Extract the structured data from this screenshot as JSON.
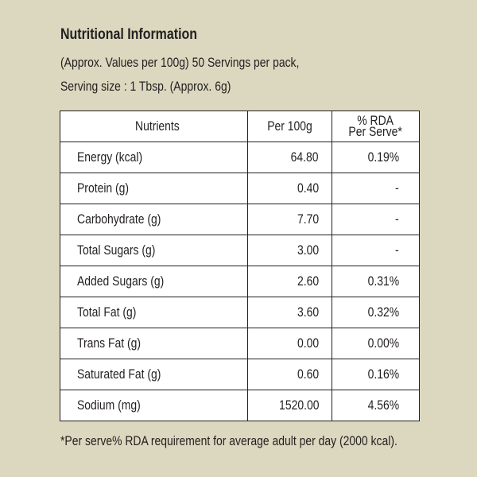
{
  "title": "Nutritional Information",
  "subtitle_line1": "(Approx. Values per 100g) 50 Servings per pack,",
  "subtitle_line2": "Serving size : 1  Tbsp. (Approx. 6g)",
  "table": {
    "headers": {
      "nutrients": "Nutrients",
      "per100g": "Per 100g",
      "rda_line1": "% RDA",
      "rda_line2": "Per Serve*"
    },
    "rows": [
      {
        "nutrient": "Energy (kcal)",
        "per100g": "64.80",
        "rda": "0.19%"
      },
      {
        "nutrient": "Protein (g)",
        "per100g": "0.40",
        "rda": "-"
      },
      {
        "nutrient": "Carbohydrate (g)",
        "per100g": "7.70",
        "rda": "-"
      },
      {
        "nutrient": "Total Sugars (g)",
        "per100g": "3.00",
        "rda": "-"
      },
      {
        "nutrient": "Added Sugars (g)",
        "per100g": "2.60",
        "rda": "0.31%"
      },
      {
        "nutrient": "Total Fat (g)",
        "per100g": "3.60",
        "rda": "0.32%"
      },
      {
        "nutrient": "Trans Fat (g)",
        "per100g": "0.00",
        "rda": "0.00%"
      },
      {
        "nutrient": "Saturated Fat (g)",
        "per100g": "0.60",
        "rda": "0.16%"
      },
      {
        "nutrient": "Sodium (mg)",
        "per100g": "1520.00",
        "rda": "4.56%"
      }
    ]
  },
  "footnote": "*Per serve% RDA requirement for average adult per day (2000 kcal).",
  "colors": {
    "background": "#dbd8bf",
    "table_background": "#ffffff",
    "text": "#231f20"
  }
}
